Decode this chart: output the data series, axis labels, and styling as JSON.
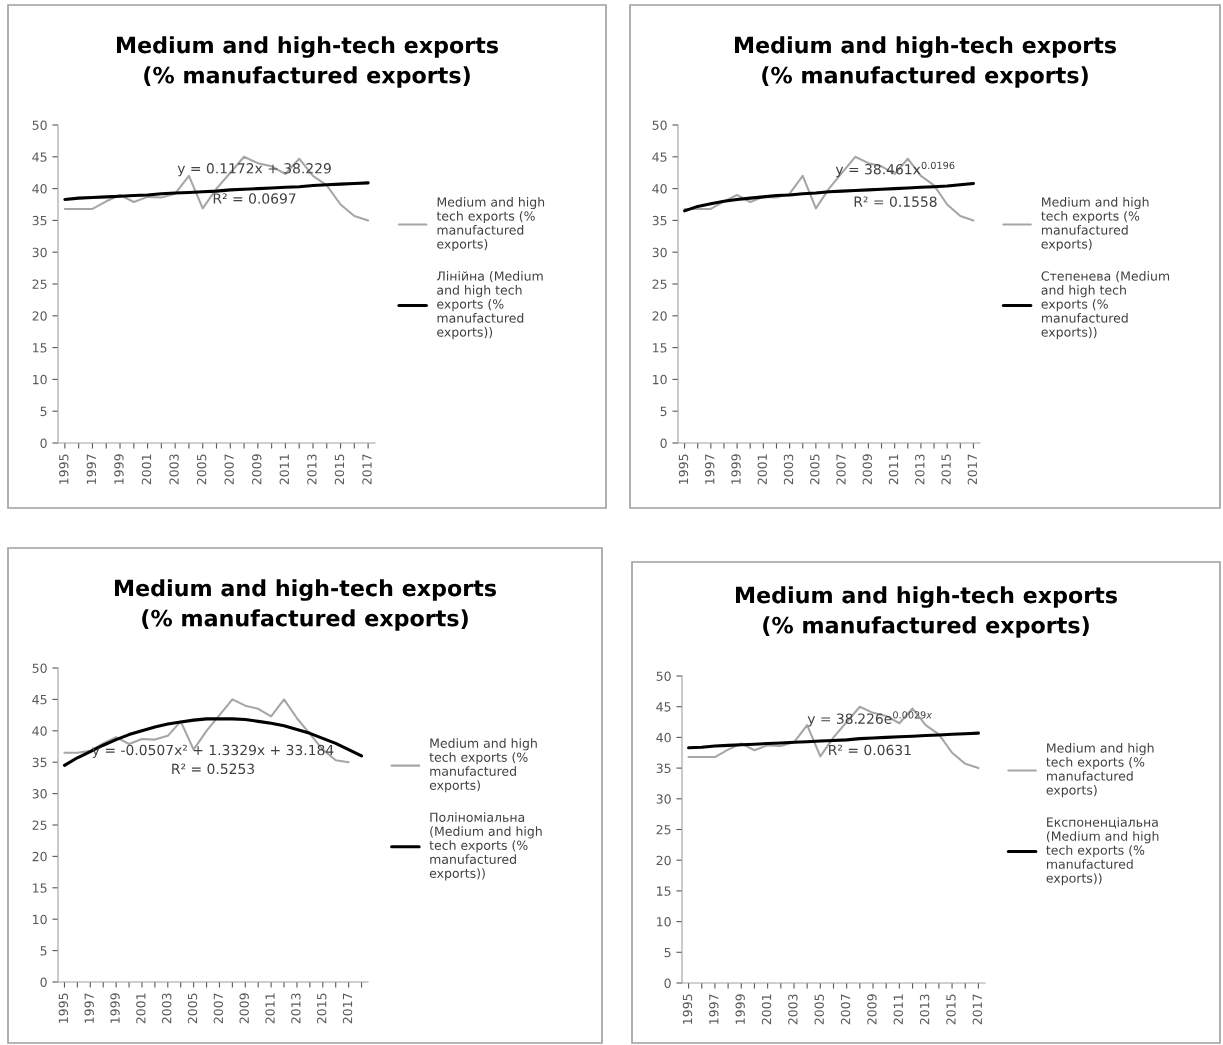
{
  "chart_data": [
    {
      "type": "line",
      "title": "Medium and high-tech exports\n(% manufactured exports)",
      "categories": [
        "1995",
        null,
        "1997",
        null,
        "1999",
        null,
        "2001",
        null,
        "2003",
        null,
        "2005",
        null,
        "2007",
        null,
        "2009",
        null,
        "2011",
        null,
        "2013",
        null,
        "2015",
        null,
        "2017"
      ],
      "ylim": [
        0,
        50
      ],
      "yticks": [
        0,
        5,
        10,
        15,
        20,
        25,
        30,
        35,
        40,
        45,
        50
      ],
      "legend": "right",
      "series": [
        {
          "name": "Medium and high tech exports (% manufactured exports)",
          "color": "#a6a6a6",
          "values": [
            36.8,
            36.8,
            36.8,
            38.0,
            39.0,
            37.9,
            38.7,
            38.6,
            39.2,
            42.0,
            36.9,
            40.0,
            42.5,
            45.0,
            44.0,
            43.5,
            42.3,
            44.7,
            42.0,
            40.5,
            37.5,
            35.7,
            35.0
          ]
        },
        {
          "name": "Лінійна (Medium and high tech exports (% manufactured exports))",
          "color": "#000000",
          "values": [
            38.3,
            38.5,
            38.6,
            38.7,
            38.8,
            38.9,
            39.0,
            39.2,
            39.3,
            39.4,
            39.5,
            39.6,
            39.8,
            39.9,
            40.0,
            40.1,
            40.2,
            40.3,
            40.5,
            40.6,
            40.7,
            40.8,
            40.9
          ]
        }
      ],
      "annotations": [
        "y = 0.1172x + 38.229",
        "R² = 0.0697"
      ]
    },
    {
      "type": "line",
      "title": "Medium and high-tech exports\n(% manufactured exports)",
      "categories": [
        "1995",
        null,
        "1997",
        null,
        "1999",
        null,
        "2001",
        null,
        "2003",
        null,
        "2005",
        null,
        "2007",
        null,
        "2009",
        null,
        "2011",
        null,
        "2013",
        null,
        "2015",
        null,
        "2017"
      ],
      "ylim": [
        0,
        50
      ],
      "yticks": [
        0,
        5,
        10,
        15,
        20,
        25,
        30,
        35,
        40,
        45,
        50
      ],
      "legend": "right",
      "series": [
        {
          "name": "Medium and high tech exports (% manufactured exports)",
          "color": "#a6a6a6",
          "values": [
            36.8,
            36.8,
            36.8,
            38.0,
            39.0,
            37.9,
            38.7,
            38.6,
            39.2,
            42.0,
            36.9,
            40.0,
            42.5,
            45.0,
            44.0,
            43.5,
            42.3,
            44.7,
            42.0,
            40.5,
            37.5,
            35.7,
            35.0
          ]
        },
        {
          "name": "Степенева (Medium and high tech exports (% manufactured exports))",
          "color": "#000000",
          "values": [
            36.5,
            37.2,
            37.6,
            38.0,
            38.3,
            38.5,
            38.7,
            38.9,
            39.0,
            39.2,
            39.3,
            39.5,
            39.6,
            39.7,
            39.8,
            39.9,
            40.0,
            40.1,
            40.2,
            40.3,
            40.4,
            40.6,
            40.8
          ]
        }
      ],
      "annotations": [
        "y = 38.461x$^{0.0196}$",
        "R² = 0.1558"
      ]
    },
    {
      "type": "line",
      "title": "Medium and high-tech exports\n(% manufactured exports)",
      "categories": [
        "1995",
        null,
        "1997",
        null,
        "1999",
        null,
        "2001",
        null,
        "2003",
        null,
        "2005",
        null,
        "2007",
        null,
        "2009",
        null,
        "2011",
        null,
        "2013",
        null,
        "2015",
        null,
        "2017",
        null
      ],
      "ylim": [
        0,
        50
      ],
      "yticks": [
        0,
        5,
        10,
        15,
        20,
        25,
        30,
        35,
        40,
        45,
        50
      ],
      "legend": "right",
      "series": [
        {
          "name": "Medium and high tech exports (% manufactured exports)",
          "color": "#a6a6a6",
          "values": [
            36.5,
            36.5,
            36.8,
            38.0,
            39.0,
            37.9,
            38.7,
            38.6,
            39.2,
            41.5,
            37.0,
            40.0,
            42.5,
            45.0,
            44.0,
            43.5,
            42.3,
            45.0,
            42.0,
            39.5,
            37.0,
            35.3,
            35.0,
            null
          ]
        },
        {
          "name": "Поліноміальна (Medium and high tech exports (% manufactured exports))",
          "color": "#000000",
          "values": [
            34.5,
            35.7,
            36.7,
            37.7,
            38.6,
            39.4,
            40.0,
            40.6,
            41.1,
            41.4,
            41.7,
            41.9,
            41.9,
            41.9,
            41.8,
            41.5,
            41.2,
            40.8,
            40.2,
            39.6,
            38.8,
            38.0,
            37.0,
            36.0
          ]
        }
      ],
      "annotations": [
        "y = -0.0507x² + 1.3329x + 33.184",
        "R² = 0.5253"
      ]
    },
    {
      "type": "line",
      "title": "Medium and high-tech exports\n(% manufactured exports)",
      "categories": [
        "1995",
        null,
        "1997",
        null,
        "1999",
        null,
        "2001",
        null,
        "2003",
        null,
        "2005",
        null,
        "2007",
        null,
        "2009",
        null,
        "2011",
        null,
        "2013",
        null,
        "2015",
        null,
        "2017"
      ],
      "ylim": [
        0,
        50
      ],
      "yticks": [
        0,
        5,
        10,
        15,
        20,
        25,
        30,
        35,
        40,
        45,
        50
      ],
      "legend": "right",
      "series": [
        {
          "name": "Medium and high tech exports (% manufactured exports)",
          "color": "#a6a6a6",
          "values": [
            36.8,
            36.8,
            36.8,
            38.0,
            39.0,
            37.9,
            38.7,
            38.6,
            39.2,
            42.0,
            36.9,
            40.0,
            42.5,
            45.0,
            44.0,
            43.5,
            42.3,
            44.7,
            42.0,
            40.5,
            37.5,
            35.7,
            35.0
          ]
        },
        {
          "name": "Експоненціальна (Medium and high tech exports (% manufactured exports))",
          "color": "#000000",
          "values": [
            38.3,
            38.4,
            38.6,
            38.7,
            38.8,
            38.9,
            39.0,
            39.1,
            39.2,
            39.3,
            39.4,
            39.5,
            39.6,
            39.8,
            39.9,
            40.0,
            40.1,
            40.2,
            40.3,
            40.4,
            40.5,
            40.6,
            40.7
          ]
        }
      ],
      "annotations": [
        "y = 38.226e$^{0.0029x}$",
        "R² = 0.0631"
      ]
    }
  ]
}
